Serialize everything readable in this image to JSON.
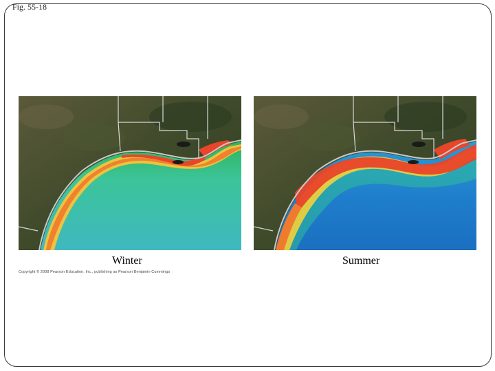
{
  "figure": {
    "label": "Fig. 55-18",
    "copyright": "Copyright © 2008 Pearson Education, Inc., publishing as Pearson Benjamin Cummings"
  },
  "panels": [
    {
      "caption": "Winter"
    },
    {
      "caption": "Summer"
    }
  ],
  "colors": {
    "land": "#3f4a2c",
    "winter_water": "#3ec49a",
    "summer_water": "#1f86cc",
    "bloom_red": "#e8452a",
    "bloom_yellow": "#f2d23a",
    "border": "#c8c8c8"
  }
}
